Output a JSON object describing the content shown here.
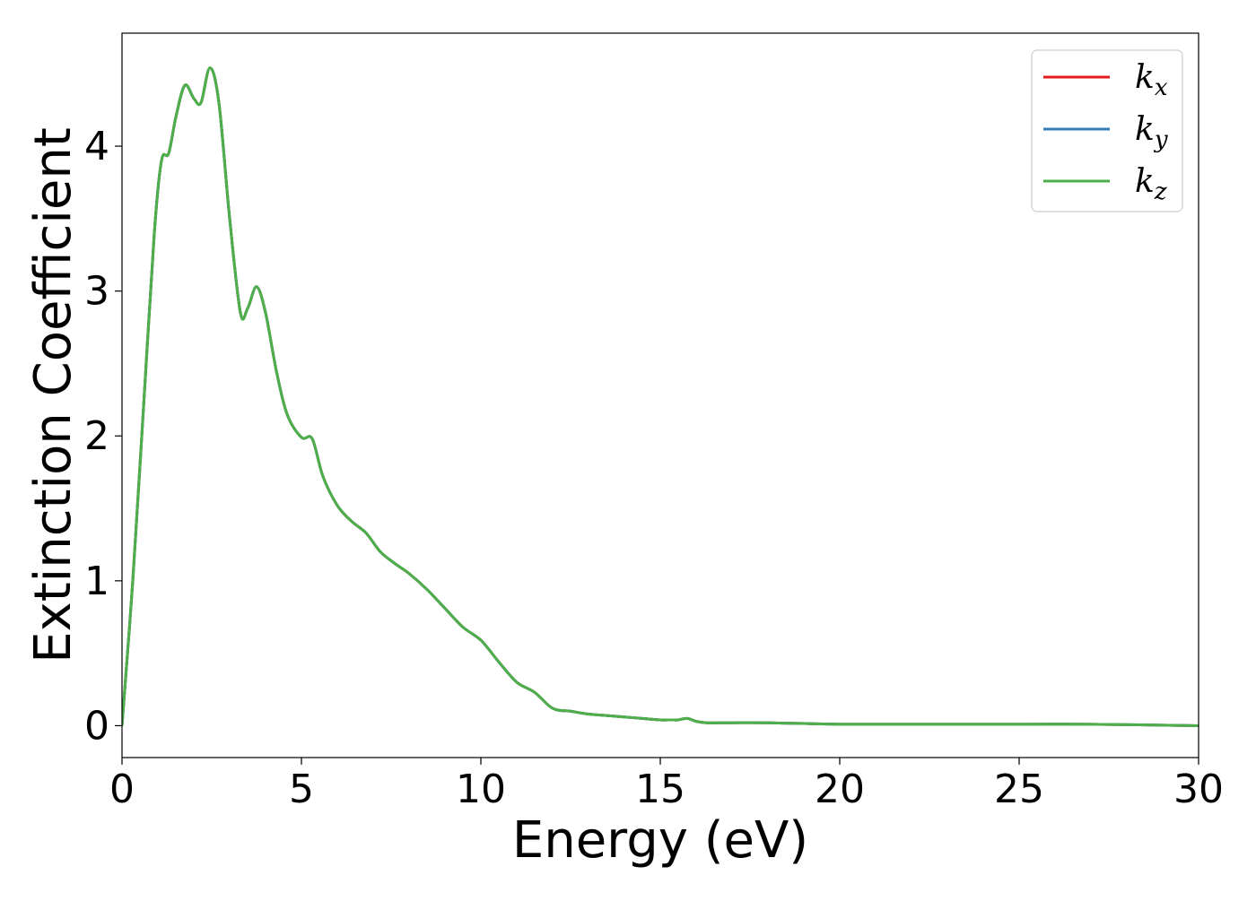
{
  "chart_data": {
    "type": "line",
    "title": "",
    "xlabel": "Energy (eV)",
    "ylabel": "Extinction Coefficient",
    "xlim": [
      0,
      30
    ],
    "ylim": [
      -0.22,
      4.78
    ],
    "xticks": [
      0,
      5,
      10,
      15,
      20,
      25,
      30
    ],
    "yticks": [
      0,
      1,
      2,
      3,
      4
    ],
    "grid": false,
    "legend_position": "top-right",
    "series": [
      {
        "name": "k_x",
        "label_main": "k",
        "label_sub": "x",
        "color": "#e41a1c",
        "x": [
          0,
          0.3,
          0.6,
          0.9,
          1.1,
          1.3,
          1.5,
          1.75,
          2.0,
          2.2,
          2.45,
          2.7,
          3.0,
          3.3,
          3.5,
          3.75,
          4.0,
          4.3,
          4.6,
          5.0,
          5.3,
          5.6,
          6.0,
          6.4,
          6.8,
          7.2,
          7.6,
          8.0,
          8.5,
          9.0,
          9.5,
          10.0,
          10.5,
          11.0,
          11.5,
          12.0,
          12.5,
          13.0,
          13.5,
          14.0,
          14.5,
          15.0,
          15.3,
          15.5,
          15.75,
          16.0,
          16.3,
          17.0,
          18.0,
          20.0,
          22.0,
          25.0,
          27.0,
          30.0
        ],
        "y": [
          0.0,
          1.0,
          2.2,
          3.4,
          3.9,
          3.95,
          4.2,
          4.42,
          4.33,
          4.3,
          4.54,
          4.3,
          3.5,
          2.85,
          2.88,
          3.03,
          2.85,
          2.45,
          2.15,
          1.99,
          1.98,
          1.72,
          1.52,
          1.41,
          1.33,
          1.2,
          1.12,
          1.05,
          0.94,
          0.81,
          0.68,
          0.59,
          0.44,
          0.3,
          0.23,
          0.12,
          0.1,
          0.08,
          0.07,
          0.06,
          0.05,
          0.04,
          0.04,
          0.04,
          0.05,
          0.03,
          0.02,
          0.02,
          0.02,
          0.01,
          0.01,
          0.01,
          0.01,
          0.0
        ]
      },
      {
        "name": "k_y",
        "label_main": "k",
        "label_sub": "y",
        "color": "#377eb8",
        "x": [
          0,
          0.3,
          0.6,
          0.9,
          1.1,
          1.3,
          1.5,
          1.75,
          2.0,
          2.2,
          2.45,
          2.7,
          3.0,
          3.3,
          3.5,
          3.75,
          4.0,
          4.3,
          4.6,
          5.0,
          5.3,
          5.6,
          6.0,
          6.4,
          6.8,
          7.2,
          7.6,
          8.0,
          8.5,
          9.0,
          9.5,
          10.0,
          10.5,
          11.0,
          11.5,
          12.0,
          12.5,
          13.0,
          13.5,
          14.0,
          14.5,
          15.0,
          15.3,
          15.5,
          15.75,
          16.0,
          16.3,
          17.0,
          18.0,
          20.0,
          22.0,
          25.0,
          27.0,
          30.0
        ],
        "y": [
          0.0,
          1.0,
          2.2,
          3.4,
          3.9,
          3.95,
          4.2,
          4.42,
          4.33,
          4.3,
          4.54,
          4.3,
          3.5,
          2.85,
          2.88,
          3.03,
          2.85,
          2.45,
          2.15,
          1.99,
          1.98,
          1.72,
          1.52,
          1.41,
          1.33,
          1.2,
          1.12,
          1.05,
          0.94,
          0.81,
          0.68,
          0.59,
          0.44,
          0.3,
          0.23,
          0.12,
          0.1,
          0.08,
          0.07,
          0.06,
          0.05,
          0.04,
          0.04,
          0.04,
          0.05,
          0.03,
          0.02,
          0.02,
          0.02,
          0.01,
          0.01,
          0.01,
          0.01,
          0.0
        ]
      },
      {
        "name": "k_z",
        "label_main": "k",
        "label_sub": "z",
        "color": "#4daf4a",
        "x": [
          0,
          0.3,
          0.6,
          0.9,
          1.1,
          1.3,
          1.5,
          1.75,
          2.0,
          2.2,
          2.45,
          2.7,
          3.0,
          3.3,
          3.5,
          3.75,
          4.0,
          4.3,
          4.6,
          5.0,
          5.3,
          5.6,
          6.0,
          6.4,
          6.8,
          7.2,
          7.6,
          8.0,
          8.5,
          9.0,
          9.5,
          10.0,
          10.5,
          11.0,
          11.5,
          12.0,
          12.5,
          13.0,
          13.5,
          14.0,
          14.5,
          15.0,
          15.3,
          15.5,
          15.75,
          16.0,
          16.3,
          17.0,
          18.0,
          20.0,
          22.0,
          25.0,
          27.0,
          30.0
        ],
        "y": [
          0.0,
          1.0,
          2.2,
          3.4,
          3.9,
          3.95,
          4.2,
          4.42,
          4.33,
          4.3,
          4.54,
          4.3,
          3.5,
          2.85,
          2.88,
          3.03,
          2.85,
          2.45,
          2.15,
          1.99,
          1.98,
          1.72,
          1.52,
          1.41,
          1.33,
          1.2,
          1.12,
          1.05,
          0.94,
          0.81,
          0.68,
          0.59,
          0.44,
          0.3,
          0.23,
          0.12,
          0.1,
          0.08,
          0.07,
          0.06,
          0.05,
          0.04,
          0.04,
          0.04,
          0.05,
          0.03,
          0.02,
          0.02,
          0.02,
          0.01,
          0.01,
          0.01,
          0.01,
          0.0
        ]
      }
    ]
  }
}
